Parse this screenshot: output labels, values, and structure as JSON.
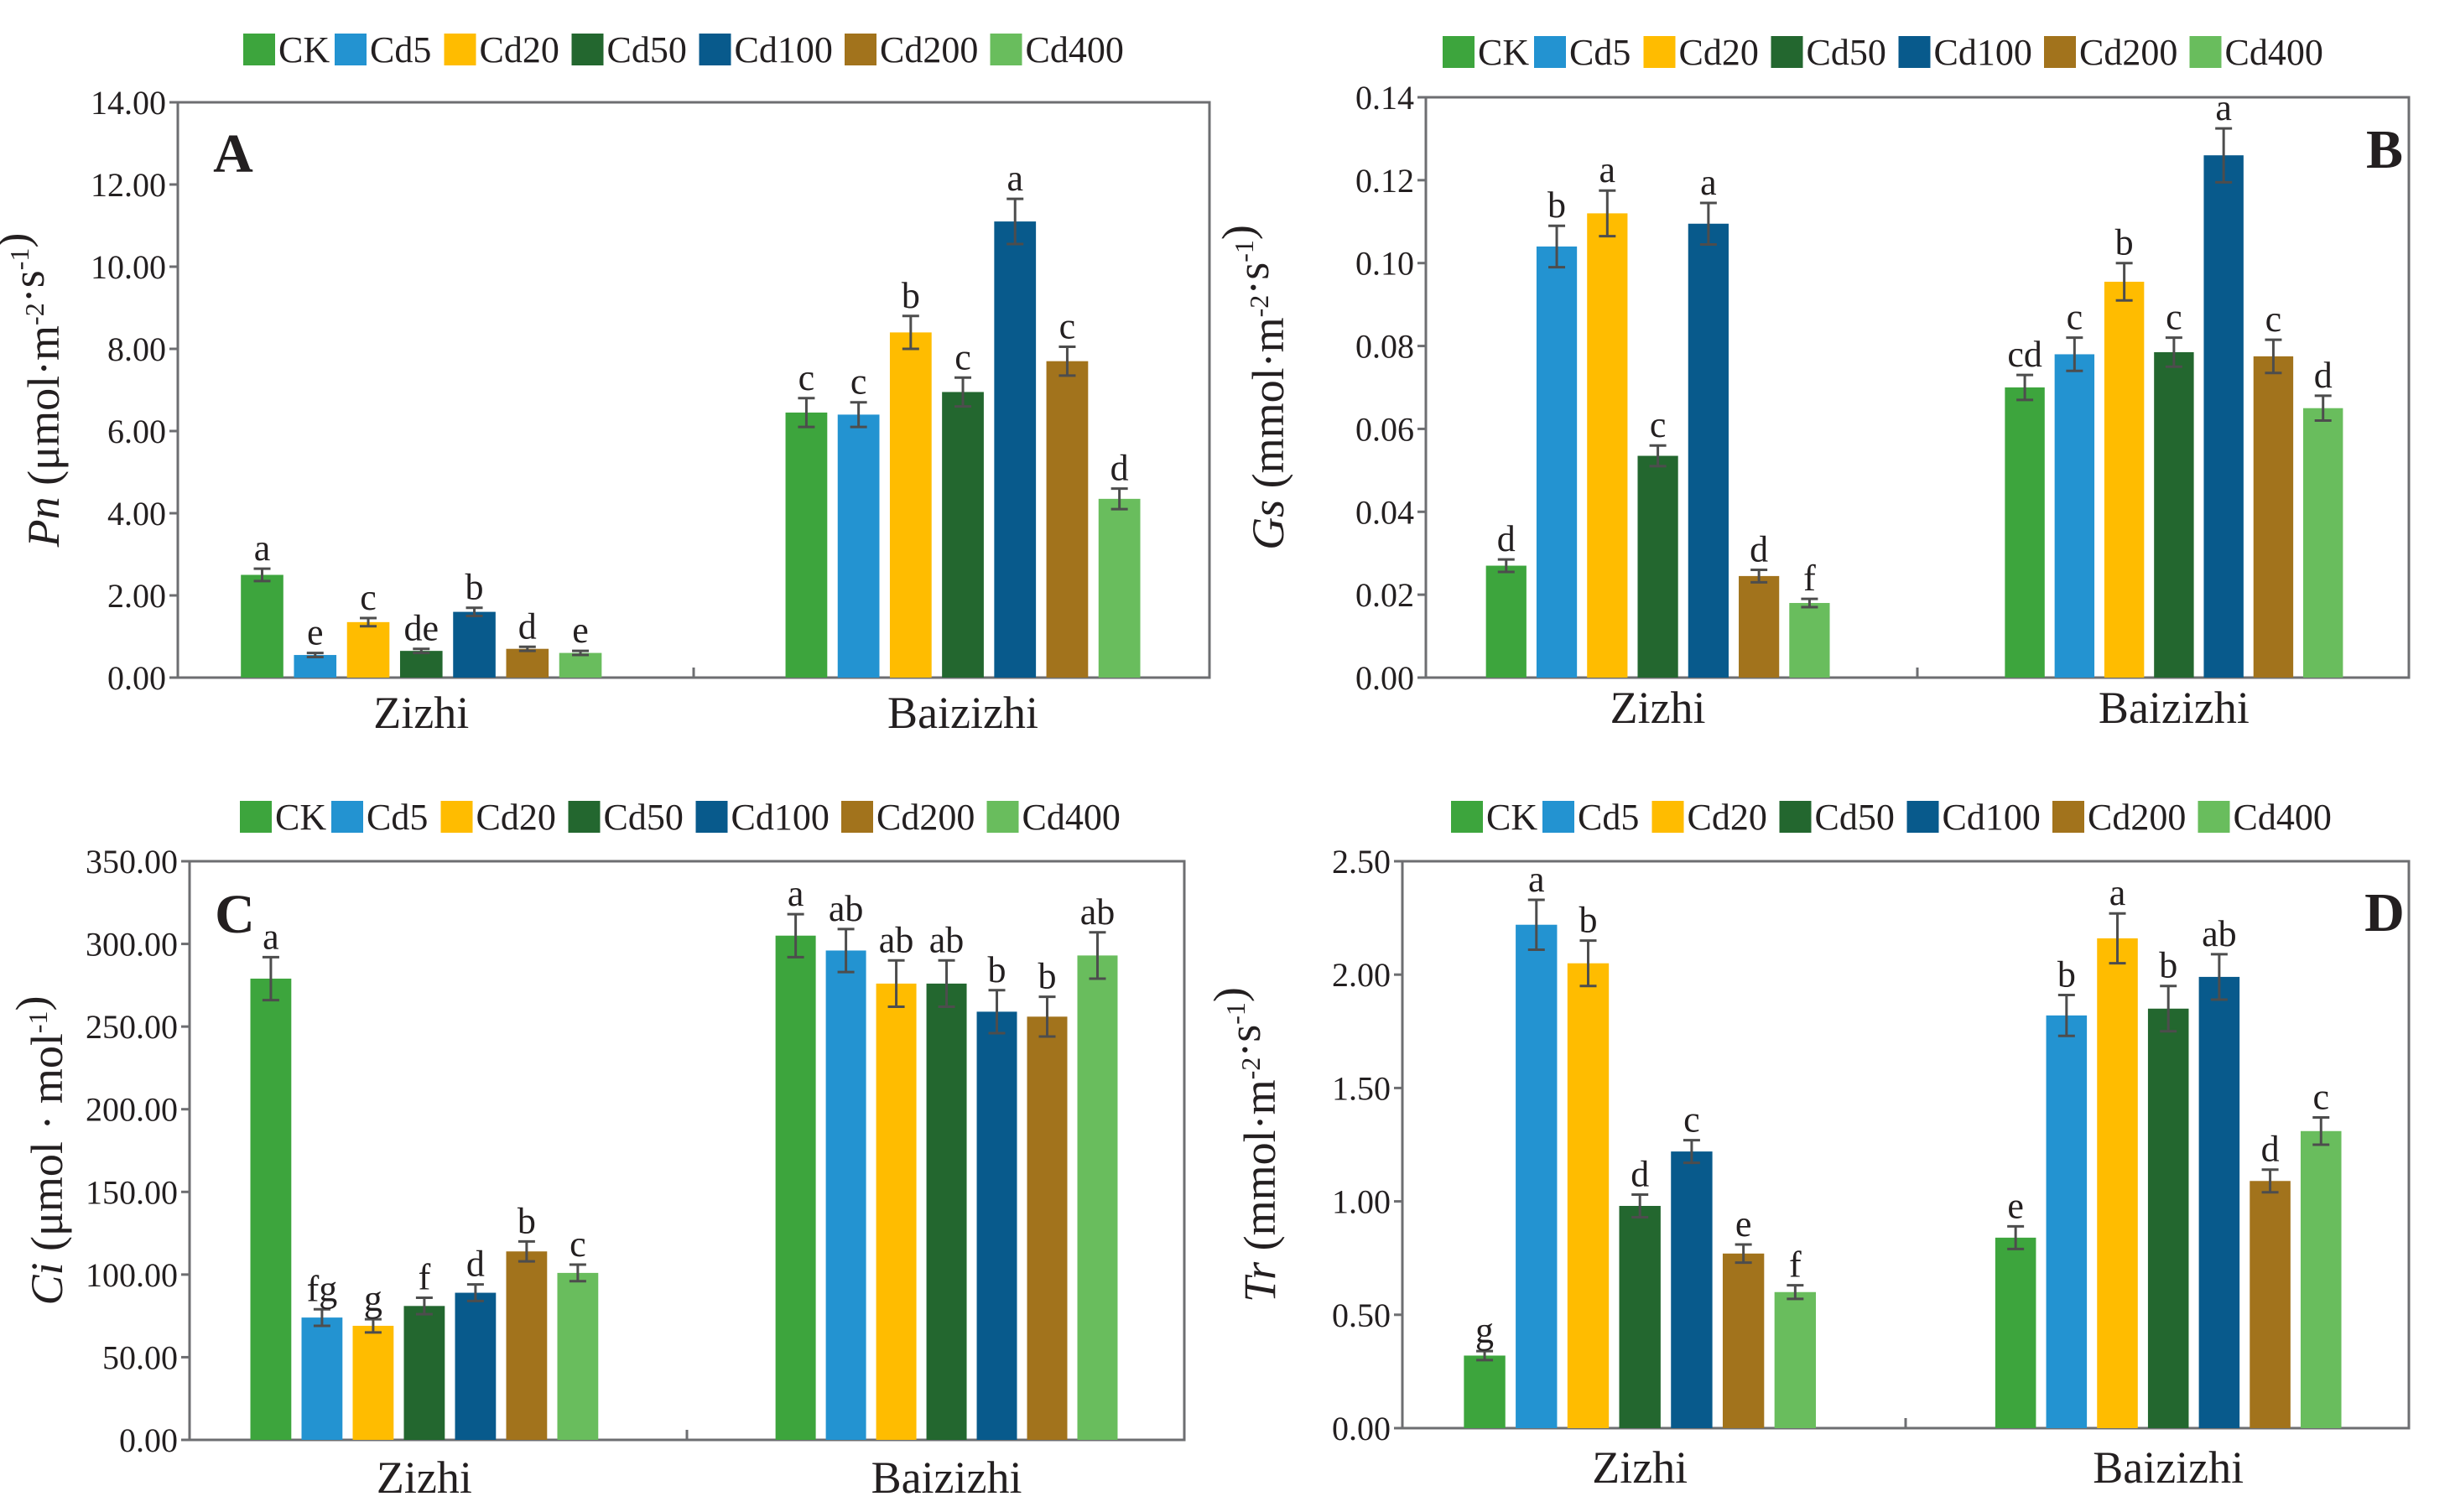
{
  "colors": {
    "CK": "#3da53d",
    "Cd5": "#2393d1",
    "Cd20": "#ffbc00",
    "Cd50": "#23672f",
    "Cd100": "#085a8c",
    "Cd200": "#a2731c",
    "Cd400": "#69bd5d",
    "axis": "#6d6e71",
    "error": "#4d4d4d"
  },
  "chart_data": [
    {
      "type": "bar",
      "panel_label": "A",
      "ylabel_var": "Pn",
      "ylabel_unit": "(μmol·m-2·s-1)",
      "categories": [
        "Zizhi",
        "Baizizhi"
      ],
      "ylim": [
        0,
        14
      ],
      "ytick_labels": [
        "0.00",
        "2.00",
        "4.00",
        "6.00",
        "8.00",
        "10.00",
        "12.00",
        "14.00"
      ],
      "series": [
        {
          "name": "CK",
          "values": [
            2.5,
            6.45
          ],
          "errors": [
            0.15,
            0.35
          ],
          "letters": [
            "a",
            "c"
          ]
        },
        {
          "name": "Cd5",
          "values": [
            0.55,
            6.4
          ],
          "errors": [
            0.05,
            0.3
          ],
          "letters": [
            "e",
            "c"
          ]
        },
        {
          "name": "Cd20",
          "values": [
            1.35,
            8.4
          ],
          "errors": [
            0.1,
            0.4
          ],
          "letters": [
            "c",
            "b"
          ]
        },
        {
          "name": "Cd50",
          "values": [
            0.65,
            6.95
          ],
          "errors": [
            0.05,
            0.35
          ],
          "letters": [
            "de",
            "c"
          ]
        },
        {
          "name": "Cd100",
          "values": [
            1.6,
            11.1
          ],
          "errors": [
            0.1,
            0.55
          ],
          "letters": [
            "b",
            "a"
          ]
        },
        {
          "name": "Cd200",
          "values": [
            0.7,
            7.7
          ],
          "errors": [
            0.05,
            0.35
          ],
          "letters": [
            "d",
            "c"
          ]
        },
        {
          "name": "Cd400",
          "values": [
            0.6,
            4.35
          ],
          "errors": [
            0.05,
            0.25
          ],
          "letters": [
            "e",
            "d"
          ]
        }
      ]
    },
    {
      "type": "bar",
      "panel_label": "B",
      "ylabel_var": "Gs",
      "ylabel_unit": "(mmol·m-2·s-1)",
      "categories": [
        "Zizhi",
        "Baizizhi"
      ],
      "ylim": [
        0,
        0.14
      ],
      "ytick_labels": [
        "0.00",
        "0.02",
        "0.04",
        "0.06",
        "0.08",
        "0.10",
        "0.12",
        "0.14"
      ],
      "series": [
        {
          "name": "CK",
          "values": [
            0.027,
            0.07
          ],
          "errors": [
            0.0015,
            0.003
          ],
          "letters": [
            "d",
            "cd"
          ]
        },
        {
          "name": "Cd5",
          "values": [
            0.104,
            0.078
          ],
          "errors": [
            0.005,
            0.004
          ],
          "letters": [
            "b",
            "c"
          ]
        },
        {
          "name": "Cd20",
          "values": [
            0.112,
            0.0955
          ],
          "errors": [
            0.0055,
            0.0045
          ],
          "letters": [
            "a",
            "b"
          ]
        },
        {
          "name": "Cd50",
          "values": [
            0.0535,
            0.0785
          ],
          "errors": [
            0.0025,
            0.0035
          ],
          "letters": [
            "c",
            "c"
          ]
        },
        {
          "name": "Cd100",
          "values": [
            0.1095,
            0.126
          ],
          "errors": [
            0.005,
            0.0065
          ],
          "letters": [
            "a",
            "a"
          ]
        },
        {
          "name": "Cd200",
          "values": [
            0.0245,
            0.0775
          ],
          "errors": [
            0.0015,
            0.004
          ],
          "letters": [
            "d",
            "c"
          ]
        },
        {
          "name": "Cd400",
          "values": [
            0.018,
            0.065
          ],
          "errors": [
            0.001,
            0.003
          ],
          "letters": [
            "f",
            "d"
          ]
        }
      ]
    },
    {
      "type": "bar",
      "panel_label": "C",
      "ylabel_var": "Ci",
      "ylabel_unit": "(μmol · mol-1)",
      "categories": [
        "Zizhi",
        "Baizizhi"
      ],
      "ylim": [
        0,
        350
      ],
      "ytick_labels": [
        "0.00",
        "50.00",
        "100.00",
        "150.00",
        "200.00",
        "250.00",
        "300.00",
        "350.00"
      ],
      "series": [
        {
          "name": "CK",
          "values": [
            279,
            305
          ],
          "errors": [
            13,
            13
          ],
          "letters": [
            "a",
            "a"
          ]
        },
        {
          "name": "Cd5",
          "values": [
            74,
            296
          ],
          "errors": [
            5,
            13
          ],
          "letters": [
            "fg",
            "ab"
          ]
        },
        {
          "name": "Cd20",
          "values": [
            69,
            276
          ],
          "errors": [
            4,
            14
          ],
          "letters": [
            "g",
            "ab"
          ]
        },
        {
          "name": "Cd50",
          "values": [
            81,
            276
          ],
          "errors": [
            5,
            14
          ],
          "letters": [
            "f",
            "ab"
          ]
        },
        {
          "name": "Cd100",
          "values": [
            89,
            259
          ],
          "errors": [
            5,
            13
          ],
          "letters": [
            "d",
            "b"
          ]
        },
        {
          "name": "Cd200",
          "values": [
            114,
            256
          ],
          "errors": [
            6,
            12
          ],
          "letters": [
            "b",
            "b"
          ]
        },
        {
          "name": "Cd400",
          "values": [
            101,
            293
          ],
          "errors": [
            5,
            14
          ],
          "letters": [
            "c",
            "ab"
          ]
        }
      ]
    },
    {
      "type": "bar",
      "panel_label": "D",
      "ylabel_var": "Tr",
      "ylabel_unit": "(mmol·m-2·s-1)",
      "categories": [
        "Zizhi",
        "Baizizhi"
      ],
      "ylim": [
        0,
        2.5
      ],
      "ytick_labels": [
        "0.00",
        "0.50",
        "1.00",
        "1.50",
        "2.00",
        "2.50"
      ],
      "series": [
        {
          "name": "CK",
          "values": [
            0.32,
            0.84
          ],
          "errors": [
            0.02,
            0.05
          ],
          "letters": [
            "g",
            "e"
          ]
        },
        {
          "name": "Cd5",
          "values": [
            2.22,
            1.82
          ],
          "errors": [
            0.11,
            0.09
          ],
          "letters": [
            "a",
            "b"
          ]
        },
        {
          "name": "Cd20",
          "values": [
            2.05,
            2.16
          ],
          "errors": [
            0.1,
            0.11
          ],
          "letters": [
            "b",
            "a"
          ]
        },
        {
          "name": "Cd50",
          "values": [
            0.98,
            1.85
          ],
          "errors": [
            0.05,
            0.1
          ],
          "letters": [
            "d",
            "b"
          ]
        },
        {
          "name": "Cd100",
          "values": [
            1.22,
            1.99
          ],
          "errors": [
            0.05,
            0.1
          ],
          "letters": [
            "c",
            "ab"
          ]
        },
        {
          "name": "Cd200",
          "values": [
            0.77,
            1.09
          ],
          "errors": [
            0.04,
            0.05
          ],
          "letters": [
            "e",
            "d"
          ]
        },
        {
          "name": "Cd400",
          "values": [
            0.6,
            1.31
          ],
          "errors": [
            0.03,
            0.06
          ],
          "letters": [
            "f",
            "c"
          ]
        }
      ]
    }
  ]
}
